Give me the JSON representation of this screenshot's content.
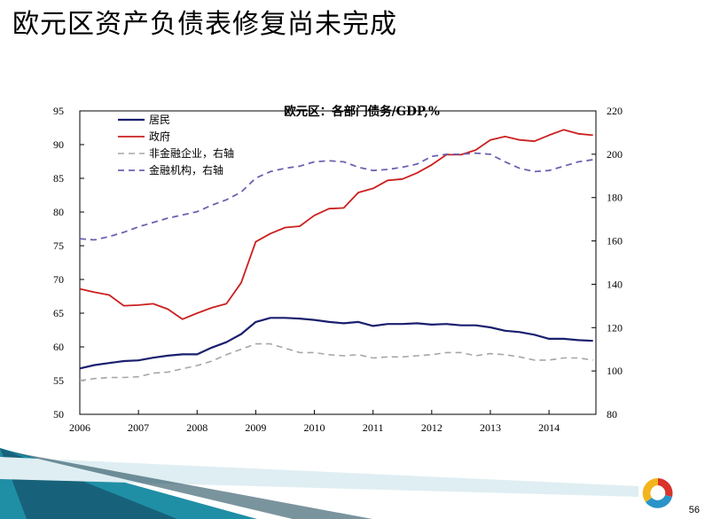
{
  "slide": {
    "title": "欧元区资产负债表修复尚未完成",
    "page_number": "56"
  },
  "colors": {
    "household": "#1a1f6e",
    "government": "#cc1f1f",
    "nonfin": "#a6a6a6",
    "financial": "#6b63b0",
    "accent_teal": "#1f8fa6"
  },
  "chart_data": {
    "type": "line",
    "title": "欧元区：各部门债务/GDP,%",
    "xlabel": "",
    "ylabel": "",
    "x_ticks": [
      "2006",
      "2007",
      "2008",
      "2009",
      "2010",
      "2011",
      "2012",
      "2013",
      "2014"
    ],
    "xlim": [
      2006,
      2014.8
    ],
    "ylim_left": [
      50,
      95
    ],
    "ylim_right": [
      80,
      220
    ],
    "y_ticks_left": [
      "50",
      "55",
      "60",
      "65",
      "70",
      "75",
      "80",
      "85",
      "90",
      "95"
    ],
    "y_ticks_right": [
      "80",
      "100",
      "120",
      "140",
      "160",
      "180",
      "200",
      "220"
    ],
    "x": [
      2006.0,
      2006.25,
      2006.5,
      2006.75,
      2007.0,
      2007.25,
      2007.5,
      2007.75,
      2008.0,
      2008.25,
      2008.5,
      2008.75,
      2009.0,
      2009.25,
      2009.5,
      2009.75,
      2010.0,
      2010.25,
      2010.5,
      2010.75,
      2011.0,
      2011.25,
      2011.5,
      2011.75,
      2012.0,
      2012.25,
      2012.5,
      2012.75,
      2013.0,
      2013.25,
      2013.5,
      2013.75,
      2014.0,
      2014.25,
      2014.5,
      2014.75
    ],
    "series": [
      {
        "name": "居民",
        "axis": "left",
        "style": "solid",
        "values": [
          56.8,
          57.3,
          57.6,
          57.9,
          58.0,
          58.4,
          58.7,
          58.9,
          58.9,
          59.9,
          60.7,
          61.9,
          63.7,
          64.3,
          64.3,
          64.2,
          64.0,
          63.7,
          63.5,
          63.7,
          63.1,
          63.4,
          63.4,
          63.5,
          63.3,
          63.4,
          63.2,
          63.2,
          62.9,
          62.4,
          62.2,
          61.8,
          61.2,
          61.2,
          61.0,
          60.9
        ]
      },
      {
        "name": "政府",
        "axis": "left",
        "style": "solid",
        "values": [
          68.6,
          68.1,
          67.7,
          66.1,
          66.2,
          66.4,
          65.6,
          64.1,
          65.0,
          65.8,
          66.4,
          69.5,
          75.6,
          76.8,
          77.7,
          77.9,
          79.5,
          80.5,
          80.6,
          82.9,
          83.5,
          84.7,
          84.9,
          85.8,
          87.0,
          88.5,
          88.5,
          89.2,
          90.7,
          91.2,
          90.7,
          90.5,
          91.4,
          92.2,
          91.6,
          91.4
        ]
      },
      {
        "name": "非金融企业，右轴",
        "axis": "right",
        "style": "dashed",
        "values": [
          95.5,
          96.5,
          97.0,
          97.0,
          97.3,
          99.0,
          99.5,
          101.0,
          102.5,
          104.5,
          107.5,
          110.0,
          112.5,
          112.5,
          110.5,
          108.5,
          108.5,
          107.5,
          107.0,
          107.5,
          106.0,
          106.5,
          106.5,
          107.0,
          107.5,
          108.5,
          108.5,
          107.0,
          108.0,
          107.5,
          106.5,
          105.0,
          105.0,
          106.0,
          106.0,
          105.0
        ]
      },
      {
        "name": "金融机构，右轴",
        "axis": "right",
        "style": "dashed",
        "values": [
          161.0,
          160.5,
          162.0,
          164.0,
          166.5,
          168.5,
          170.5,
          172.0,
          173.5,
          176.5,
          179.0,
          182.5,
          189.0,
          192.0,
          193.5,
          194.5,
          196.5,
          197.0,
          196.5,
          194.0,
          192.5,
          193.0,
          194.0,
          195.5,
          199.0,
          200.0,
          200.0,
          200.5,
          200.0,
          196.5,
          193.5,
          192.0,
          192.5,
          194.5,
          196.5,
          197.5
        ]
      }
    ]
  }
}
